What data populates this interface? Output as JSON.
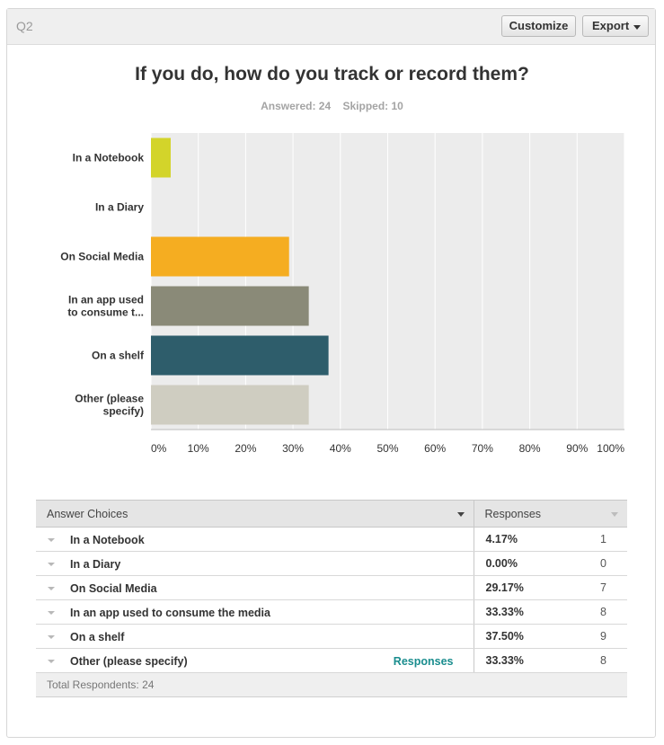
{
  "question_label": "Q2",
  "buttons": {
    "customize": "Customize",
    "export": "Export"
  },
  "title": "If you do, how do you track or record them?",
  "answered": "Answered: 24",
  "skipped": "Skipped: 10",
  "colors": {
    "notebook": "#d3d42a",
    "diary": "#e8e8e8",
    "social": "#f5ad21",
    "app": "#8a8a78",
    "shelf": "#2e5d6b",
    "other": "#cfcdc1",
    "grid": "#ececec"
  },
  "chart_data": {
    "type": "bar",
    "orientation": "horizontal",
    "categories": [
      [
        "In a Notebook"
      ],
      [
        "In a Diary"
      ],
      [
        "On Social Media"
      ],
      [
        "In an app used",
        "to consume t..."
      ],
      [
        "On a shelf"
      ],
      [
        "Other (please",
        "specify)"
      ]
    ],
    "values": [
      4.17,
      0.0,
      29.17,
      33.33,
      37.5,
      33.33
    ],
    "bar_colors": [
      "#d3d42a",
      "#e8e8e8",
      "#f5ad21",
      "#8a8a78",
      "#2e5d6b",
      "#cfcdc1"
    ],
    "xticks": [
      "0%",
      "10%",
      "20%",
      "30%",
      "40%",
      "50%",
      "60%",
      "70%",
      "80%",
      "90%",
      "100%"
    ],
    "xlim": [
      0,
      100
    ],
    "grid": true,
    "title": "If you do, how do you track or record them?"
  },
  "table": {
    "headers": {
      "choices": "Answer Choices",
      "responses": "Responses"
    },
    "rows": [
      {
        "choice": "In a Notebook",
        "pct": "4.17%",
        "count": "1",
        "link": ""
      },
      {
        "choice": "In a Diary",
        "pct": "0.00%",
        "count": "0",
        "link": ""
      },
      {
        "choice": "On Social Media",
        "pct": "29.17%",
        "count": "7",
        "link": ""
      },
      {
        "choice": "In an app used to consume the media",
        "pct": "33.33%",
        "count": "8",
        "link": ""
      },
      {
        "choice": "On a shelf",
        "pct": "37.50%",
        "count": "9",
        "link": ""
      },
      {
        "choice": "Other (please specify)",
        "pct": "33.33%",
        "count": "8",
        "link": "Responses"
      }
    ],
    "footer": "Total Respondents: 24"
  }
}
